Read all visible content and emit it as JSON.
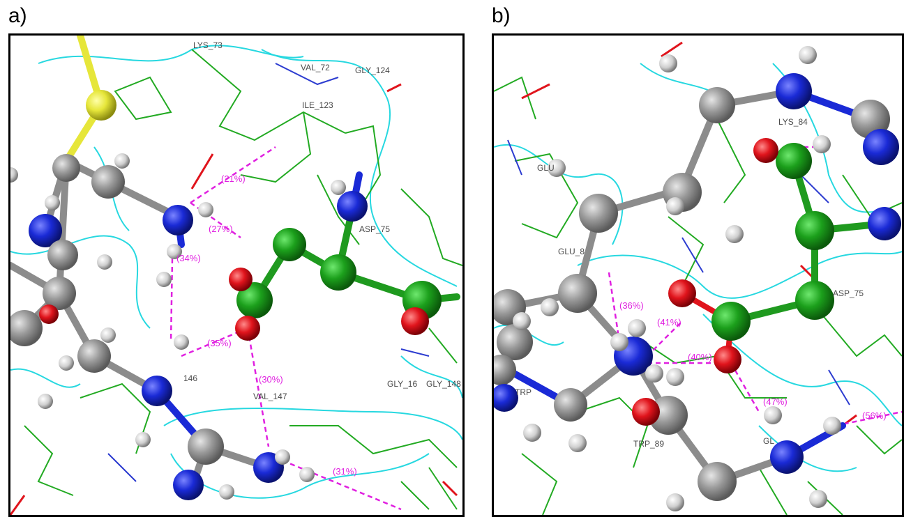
{
  "panels": [
    {
      "id": "a",
      "letter": "a)",
      "residue_labels": [
        "LYS_73",
        "VAL_72",
        "GLY_124",
        "ILE_123",
        "ASP_75",
        "146",
        "GLY_16",
        "GLY_148",
        "VAL_147"
      ],
      "hbond_labels": [
        "(21%)",
        "(27%)",
        "(34%)",
        "(35%)",
        "(30%)",
        "(31%)"
      ]
    },
    {
      "id": "b",
      "letter": "b)",
      "residue_labels": [
        "LYS_84",
        "GLU",
        "GLU_8",
        "ASP_75",
        "TRP",
        "TRP_89",
        "GL"
      ],
      "hbond_labels": [
        "(36%)",
        "(41%)",
        "(40%)",
        "(47%)",
        "(56%)"
      ]
    }
  ],
  "colors": {
    "carbon": "#8c8c8c",
    "carbon_ligand": "#1f9a1f",
    "nitrogen": "#1a2ad6",
    "oxygen": "#e0141c",
    "sulfur": "#e6e63a",
    "hydrogen": "#d6d6d6",
    "hbond": "#e020e0",
    "ribbon": "#27d8e0",
    "wire": "#22aa22"
  }
}
